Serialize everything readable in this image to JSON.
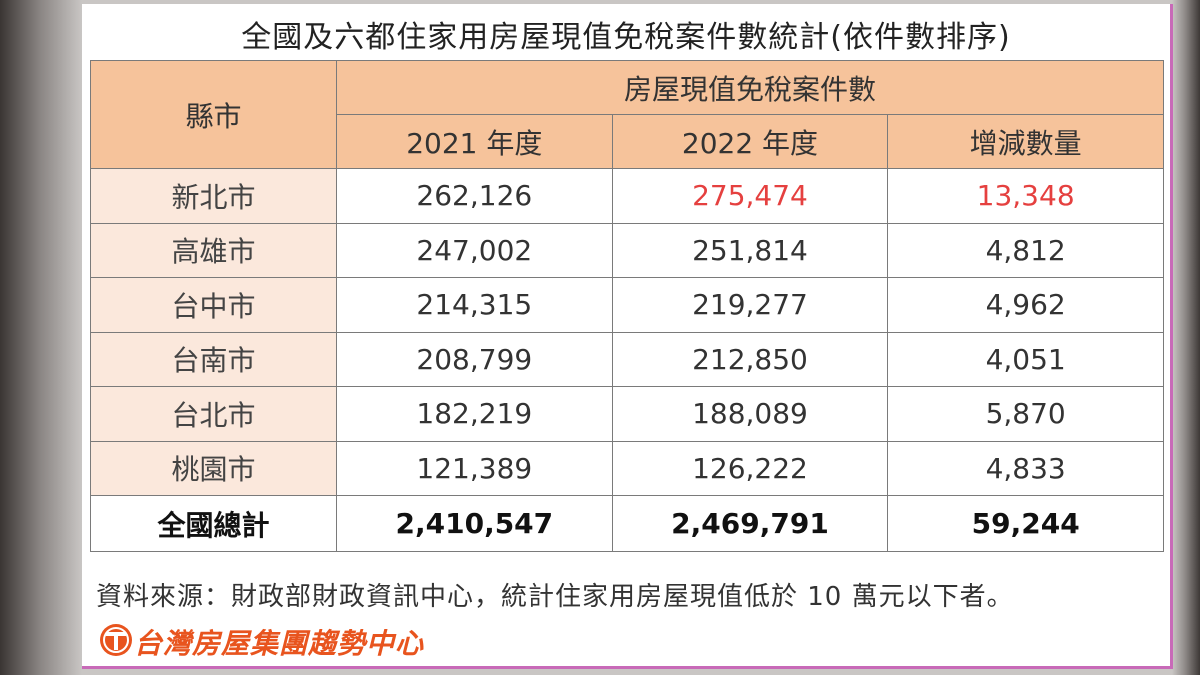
{
  "title": "全國及六都住家用房屋現值免稅案件數統計(依件數排序)",
  "table": {
    "header_city": "縣市",
    "header_group": "房屋現值免稅案件數",
    "columns": [
      "2021 年度",
      "2022 年度",
      "增減數量"
    ],
    "rows": [
      {
        "city": "新北市",
        "y2021": "262,126",
        "y2022": "275,474",
        "change": "13,348"
      },
      {
        "city": "高雄市",
        "y2021": "247,002",
        "y2022": "251,814",
        "change": "4,812"
      },
      {
        "city": "台中市",
        "y2021": "214,315",
        "y2022": "219,277",
        "change": "4,962"
      },
      {
        "city": "台南市",
        "y2021": "208,799",
        "y2022": "212,850",
        "change": "4,051"
      },
      {
        "city": "台北市",
        "y2021": "182,219",
        "y2022": "188,089",
        "change": "5,870"
      },
      {
        "city": "桃園市",
        "y2021": "121,389",
        "y2022": "126,222",
        "change": "4,833"
      }
    ],
    "total": {
      "city": "全國總計",
      "y2021": "2,410,547",
      "y2022": "2,469,791",
      "change": "59,244"
    }
  },
  "source": "資料來源：財政部財政資訊中心，統計住家用房屋現值低於 10 萬元以下者。",
  "brand": {
    "name": "台灣房屋集團趨勢中心",
    "logo_icon": "taiwan-realty-logo-icon"
  },
  "colors": {
    "header_bg": "#f6c39b",
    "city_bg": "#fbe8dc",
    "highlight": "#e5403f",
    "brand": "#e8541e"
  }
}
